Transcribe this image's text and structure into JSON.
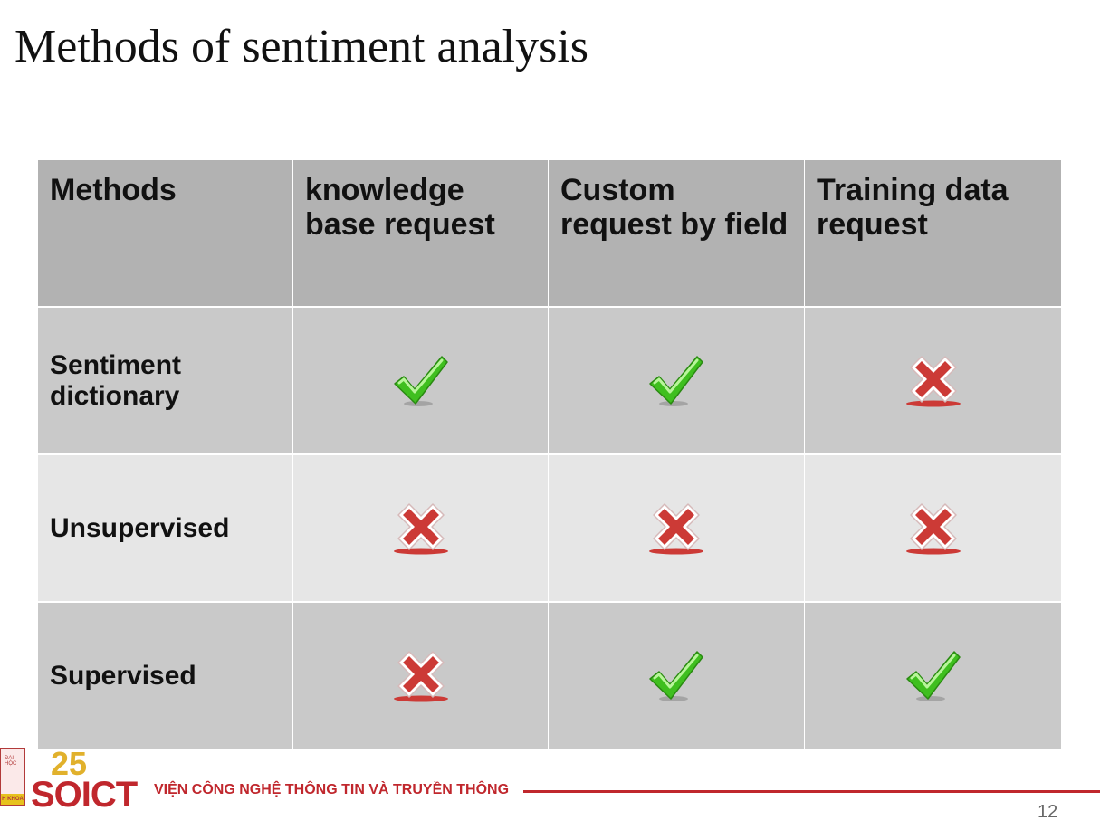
{
  "slide": {
    "title": "Methods of sentiment analysis",
    "page_number": "12"
  },
  "table": {
    "headers": [
      "Methods",
      "knowledge base request",
      "Custom request by field",
      "Training data request"
    ],
    "rows": [
      {
        "label": "Sentiment dictionary",
        "marks": [
          "check",
          "check",
          "cross"
        ]
      },
      {
        "label": "Unsupervised",
        "marks": [
          "cross",
          "cross",
          "cross"
        ]
      },
      {
        "label": "Supervised",
        "marks": [
          "cross",
          "check",
          "check"
        ]
      }
    ]
  },
  "colors": {
    "header_bg": "#b2b2b2",
    "row_dark_bg": "#c9c9c9",
    "row_light_bg": "#e6e6e6",
    "check": "#3fbf1f",
    "cross": "#cc3a36",
    "brand_red": "#c0272d",
    "brand_gold": "#e1b12c"
  },
  "footer": {
    "logo_top": "ĐẠI HỌC",
    "logo_bottom": "H KHOA",
    "logo_number": "25",
    "logo_text": "SOICT",
    "institute": "VIỆN CÔNG NGHỆ THÔNG TIN VÀ TRUYỀN THÔNG"
  }
}
